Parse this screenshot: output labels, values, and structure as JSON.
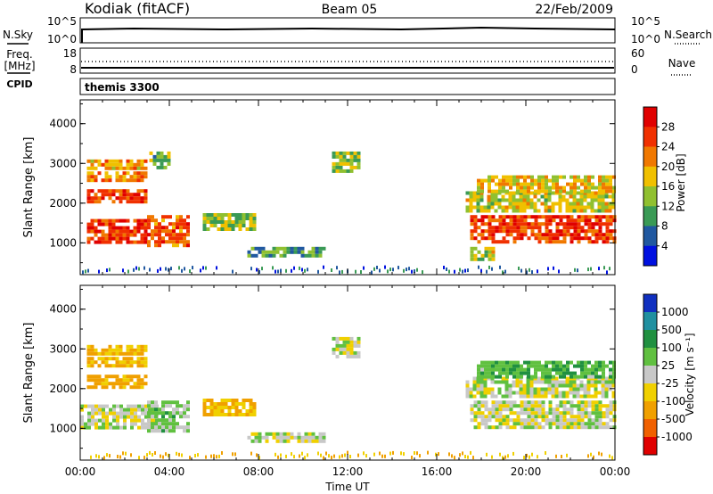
{
  "header": {
    "station": "Kodiak (fitACF)",
    "beam": "Beam 05",
    "date": "22/Feb/2009"
  },
  "strips": {
    "nsky_label": "N.Sky",
    "nsky_ticks": [
      "10^5",
      "10^0"
    ],
    "nsearch_label": "N.Search",
    "nsearch_ticks": [
      "10^5",
      "10^0"
    ],
    "freq_label_line1": "Freq.",
    "freq_label_line2": "[MHz]",
    "freq_ticks": [
      "18",
      "8"
    ],
    "nave_label": "Nave",
    "nave_ticks": [
      "60",
      "0"
    ],
    "cpid_label": "CPID",
    "cpid_value": "themis 3300"
  },
  "colorbars": {
    "power": {
      "label": "Power [dB]",
      "ticks": [
        "28",
        "24",
        "20",
        "16",
        "12",
        "8",
        "4"
      ],
      "colors": [
        "#e00000",
        "#f03000",
        "#f07800",
        "#f0c000",
        "#90c030",
        "#3a9a55",
        "#2058a0",
        "#0010e0"
      ]
    },
    "velocity": {
      "label": "Velocity [m s⁻¹]",
      "ticks": [
        "1000",
        "500",
        "100",
        "25",
        "-25",
        "-100",
        "-500",
        "-1000"
      ],
      "colors": [
        "#1030c0",
        "#2090a0",
        "#209040",
        "#60c040",
        "#c8c8c8",
        "#f0d000",
        "#f0a000",
        "#f06000",
        "#e00000"
      ]
    }
  },
  "chart_data": [
    {
      "type": "heatmap",
      "title": "",
      "xlabel": "",
      "ylabel": "Slant Range [km]",
      "xlim": [
        0,
        24
      ],
      "ylim": [
        200,
        4600
      ],
      "x_ticks": [
        "00:00",
        "04:00",
        "08:00",
        "12:00",
        "16:00",
        "20:00",
        "00:00"
      ],
      "y_ticks": [
        "1000",
        "2000",
        "3000",
        "4000"
      ],
      "colorbar": "Power [dB]",
      "regions": [
        {
          "t": [
            0.3,
            3.0
          ],
          "r": [
            2900,
            3100
          ],
          "power": 20
        },
        {
          "t": [
            0.3,
            3.0
          ],
          "r": [
            2550,
            2800
          ],
          "power": 22
        },
        {
          "t": [
            0.3,
            3.0
          ],
          "r": [
            2050,
            2350
          ],
          "power": 26
        },
        {
          "t": [
            0.3,
            3.0
          ],
          "r": [
            1050,
            1600
          ],
          "power": 27
        },
        {
          "t": [
            3.0,
            4.8
          ],
          "r": [
            900,
            1700
          ],
          "power": 24
        },
        {
          "t": [
            3.1,
            4.0
          ],
          "r": [
            2900,
            3300
          ],
          "power": 12
        },
        {
          "t": [
            5.5,
            7.8
          ],
          "r": [
            1350,
            1750
          ],
          "power": 14
        },
        {
          "t": [
            7.5,
            11.0
          ],
          "r": [
            680,
            900
          ],
          "power": 10
        },
        {
          "t": [
            11.3,
            12.5
          ],
          "r": [
            2800,
            3300
          ],
          "power": 14
        },
        {
          "t": [
            17.5,
            24.0
          ],
          "r": [
            1000,
            1700
          ],
          "power": 26
        },
        {
          "t": [
            17.3,
            24.0
          ],
          "r": [
            1800,
            2300
          ],
          "power": 16
        },
        {
          "t": [
            17.8,
            24.0
          ],
          "r": [
            2300,
            2700
          ],
          "power": 18
        },
        {
          "t": [
            17.5,
            18.6
          ],
          "r": [
            600,
            900
          ],
          "power": 16
        }
      ]
    },
    {
      "type": "heatmap",
      "title": "",
      "xlabel": "Time UT",
      "ylabel": "Slant Range [km]",
      "xlim": [
        0,
        24
      ],
      "ylim": [
        200,
        4600
      ],
      "x_ticks": [
        "00:00",
        "04:00",
        "08:00",
        "12:00",
        "16:00",
        "20:00",
        "00:00"
      ],
      "y_ticks": [
        "1000",
        "2000",
        "3000",
        "4000"
      ],
      "colorbar": "Velocity [m s⁻¹]",
      "regions": [
        {
          "t": [
            0.3,
            3.0
          ],
          "r": [
            2900,
            3100
          ],
          "velocity": -100
        },
        {
          "t": [
            0.3,
            3.0
          ],
          "r": [
            2550,
            2800
          ],
          "velocity": -100
        },
        {
          "t": [
            0.3,
            3.0
          ],
          "r": [
            2050,
            2350
          ],
          "velocity": -150
        },
        {
          "t": [
            0.0,
            3.5
          ],
          "r": [
            1050,
            1600
          ],
          "velocity": 0
        },
        {
          "t": [
            3.0,
            4.8
          ],
          "r": [
            900,
            1700
          ],
          "velocity": 50
        },
        {
          "t": [
            5.5,
            7.8
          ],
          "r": [
            1350,
            1750
          ],
          "velocity": -100
        },
        {
          "t": [
            7.5,
            11.0
          ],
          "r": [
            680,
            900
          ],
          "velocity": 0
        },
        {
          "t": [
            11.3,
            12.5
          ],
          "r": [
            2800,
            3300
          ],
          "velocity": 0
        },
        {
          "t": [
            17.5,
            24.0
          ],
          "r": [
            1000,
            1700
          ],
          "velocity": 0
        },
        {
          "t": [
            17.3,
            24.0
          ],
          "r": [
            1800,
            2300
          ],
          "velocity": 0
        },
        {
          "t": [
            17.8,
            24.0
          ],
          "r": [
            2300,
            2700
          ],
          "velocity": 80
        }
      ]
    }
  ]
}
